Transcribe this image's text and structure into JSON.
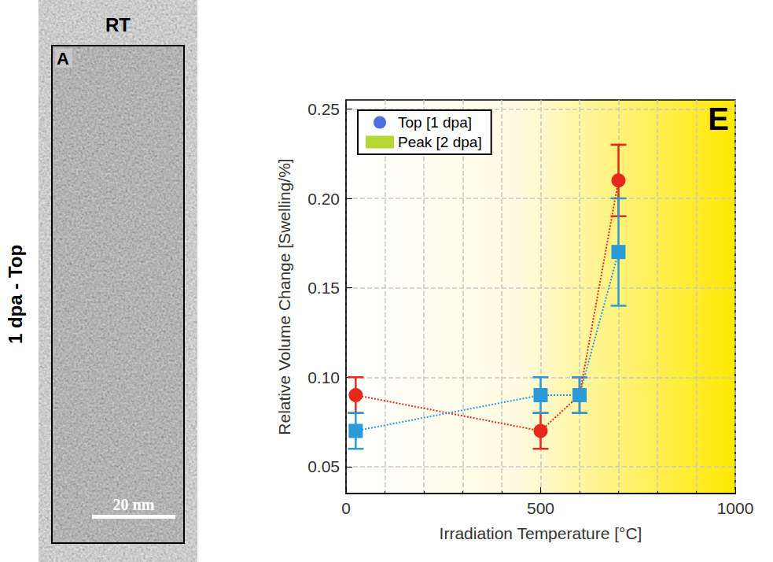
{
  "panel_a": {
    "letter": "A",
    "column_title": "RT",
    "row_title": "1 dpa - Top",
    "scale_bar": "20 nm"
  },
  "chart_data": {
    "type": "line",
    "annotations": [
      "E"
    ],
    "x_label": "Irradiation Temperature [°C]",
    "y_label": "Relative Volume Change [Swelling/%]",
    "xlim": [
      0,
      1000
    ],
    "xticks": [
      0,
      500,
      1000
    ],
    "ylim": [
      0.035,
      0.255
    ],
    "yticks": [
      {
        "value": 0.05,
        "label": "0.05"
      },
      {
        "value": 0.1,
        "label": "0.10"
      },
      {
        "value": 0.15,
        "label": "0.15"
      },
      {
        "value": 0.2,
        "label": "0.20"
      },
      {
        "value": 0.25,
        "label": "0.25"
      }
    ],
    "grid": true,
    "legend": "upper left",
    "x": [
      25,
      500,
      600,
      700
    ],
    "series": [
      {
        "name": "Top [1 dpa]",
        "color": "#e8271d",
        "marker": "circle",
        "line_style": "dotted",
        "values": [
          0.09,
          0.07,
          0.09,
          0.21
        ],
        "errors": [
          0.01,
          0.01,
          0.01,
          0.02
        ]
      },
      {
        "name": "Peak [2 dpa]",
        "color": "#2a9ad9",
        "marker": "square",
        "line_style": "dotted",
        "values": [
          0.07,
          0.09,
          0.09,
          0.17
        ],
        "errors": [
          0.01,
          0.01,
          0.01,
          0.03
        ]
      }
    ]
  }
}
